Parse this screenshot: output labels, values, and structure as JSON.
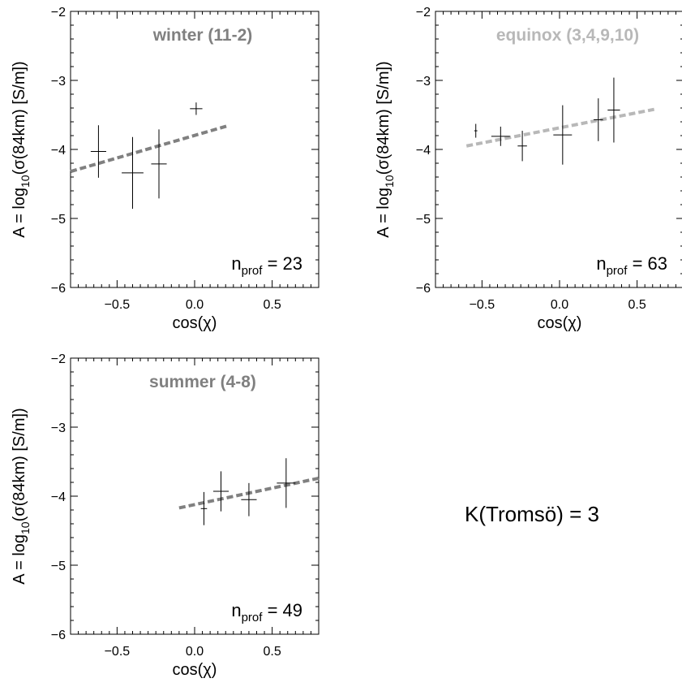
{
  "annotation": "K(Tromsö) = 3",
  "chart_data": [
    {
      "type": "scatter",
      "title": "winter (11-2)",
      "title_color": "#808080",
      "xlabel": "cos(χ)",
      "ylabel": {
        "pre": "A = log",
        "sub": "10",
        "post": "(σ(84km)  [S/m])"
      },
      "xlim": [
        -0.8,
        0.8
      ],
      "ylim": [
        -6,
        -2
      ],
      "xticks": [
        -0.5,
        0.0,
        0.5
      ],
      "xtick_labels": [
        "−0.5",
        "0.0",
        "0.5"
      ],
      "yticks": [
        -6,
        -5,
        -4,
        -3,
        -2
      ],
      "ytick_labels": [
        "−6",
        "−5",
        "−4",
        "−3",
        "−2"
      ],
      "points": [
        {
          "x": -0.62,
          "y": -4.03,
          "xerr": 0.05,
          "yerr": 0.38
        },
        {
          "x": -0.4,
          "y": -4.34,
          "xerr": 0.07,
          "yerr": 0.52
        },
        {
          "x": -0.23,
          "y": -4.21,
          "xerr": 0.05,
          "yerr": 0.5
        },
        {
          "x": 0.01,
          "y": -3.41,
          "xerr": 0.04,
          "yerr": 0.09
        }
      ],
      "fit": {
        "x": [
          -0.8,
          0.21
        ],
        "y": [
          -4.32,
          -3.66
        ],
        "color": "#808080"
      },
      "n_label": {
        "pre": "n",
        "sub": "prof",
        "post": " = 23"
      }
    },
    {
      "type": "scatter",
      "title": "equinox (3,4,9,10)",
      "title_color": "#b8b8b8",
      "xlabel": "cos(χ)",
      "ylabel": {
        "pre": "A = log",
        "sub": "10",
        "post": "(σ(84km)  [S/m])"
      },
      "xlim": [
        -0.8,
        0.8
      ],
      "ylim": [
        -6,
        -2
      ],
      "xticks": [
        -0.5,
        0.0,
        0.5
      ],
      "xtick_labels": [
        "−0.5",
        "0.0",
        "0.5"
      ],
      "yticks": [
        -6,
        -5,
        -4,
        -3,
        -2
      ],
      "ytick_labels": [
        "−6",
        "−5",
        "−4",
        "−3",
        "−2"
      ],
      "points": [
        {
          "x": -0.54,
          "y": -3.73,
          "xerr": 0.01,
          "yerr": 0.1
        },
        {
          "x": -0.38,
          "y": -3.81,
          "xerr": 0.06,
          "yerr": 0.14
        },
        {
          "x": -0.24,
          "y": -3.95,
          "xerr": 0.03,
          "yerr": 0.22
        },
        {
          "x": 0.02,
          "y": -3.79,
          "xerr": 0.06,
          "yerr": 0.43
        },
        {
          "x": 0.25,
          "y": -3.57,
          "xerr": 0.03,
          "yerr": 0.31
        },
        {
          "x": 0.35,
          "y": -3.43,
          "xerr": 0.04,
          "yerr": 0.47
        }
      ],
      "fit": {
        "x": [
          -0.6,
          0.61
        ],
        "y": [
          -3.95,
          -3.42
        ],
        "color": "#b8b8b8"
      },
      "n_label": {
        "pre": "n",
        "sub": "prof",
        "post": " = 63"
      }
    },
    {
      "type": "scatter",
      "title": "summer (4-8)",
      "title_color": "#808080",
      "xlabel": "cos(χ)",
      "ylabel": {
        "pre": "A = log",
        "sub": "10",
        "post": "(σ(84km)  [S/m])"
      },
      "xlim": [
        -0.8,
        0.8
      ],
      "ylim": [
        -6,
        -2
      ],
      "xticks": [
        -0.5,
        0.0,
        0.5
      ],
      "xtick_labels": [
        "−0.5",
        "0.0",
        "0.5"
      ],
      "yticks": [
        -6,
        -5,
        -4,
        -3,
        -2
      ],
      "ytick_labels": [
        "−6",
        "−5",
        "−4",
        "−3",
        "−2"
      ],
      "points": [
        {
          "x": 0.06,
          "y": -4.18,
          "xerr": 0.02,
          "yerr": 0.24
        },
        {
          "x": 0.17,
          "y": -3.93,
          "xerr": 0.05,
          "yerr": 0.29
        },
        {
          "x": 0.35,
          "y": -4.05,
          "xerr": 0.05,
          "yerr": 0.24
        },
        {
          "x": 0.59,
          "y": -3.81,
          "xerr": 0.06,
          "yerr": 0.36
        }
      ],
      "fit": {
        "x": [
          -0.1,
          0.8
        ],
        "y": [
          -4.17,
          -3.74
        ],
        "color": "#808080"
      },
      "n_label": {
        "pre": "n",
        "sub": "prof",
        "post": " = 49"
      }
    }
  ]
}
